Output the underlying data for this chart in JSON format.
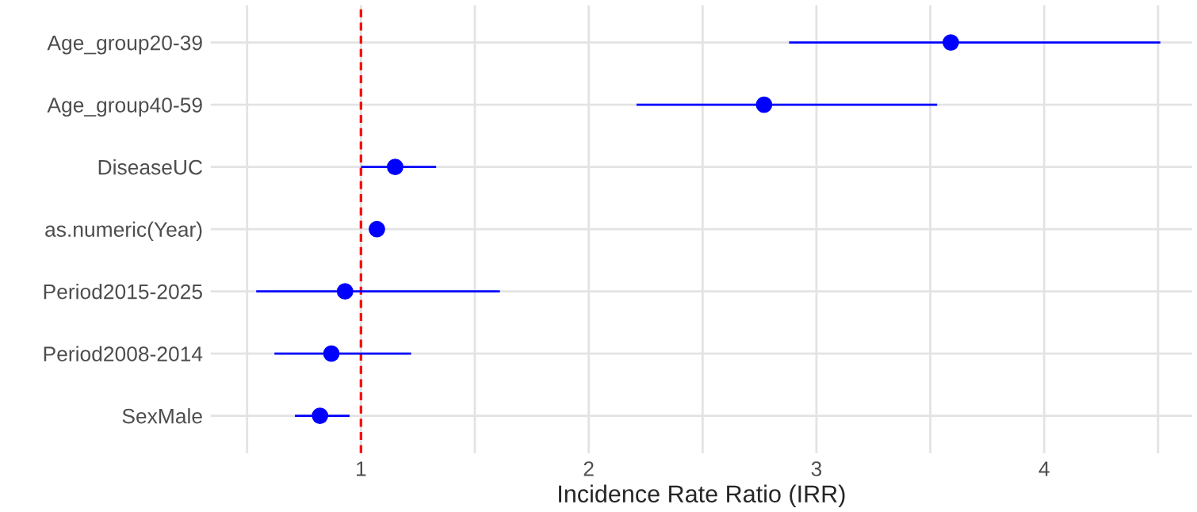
{
  "chart_data": {
    "type": "scatter",
    "orientation": "horizontal",
    "categories": [
      "Age_group20-39",
      "Age_group40-59",
      "DiseaseUC",
      "as.numeric(Year)",
      "Period2015-2025",
      "Period2008-2014",
      "SexMale"
    ],
    "values": [
      3.59,
      2.77,
      1.15,
      1.07,
      0.93,
      0.87,
      0.82
    ],
    "errors": [
      [
        2.88,
        4.51
      ],
      [
        2.21,
        3.53
      ],
      [
        1.0,
        1.33
      ],
      null,
      [
        0.54,
        1.61
      ],
      [
        0.62,
        1.22
      ],
      [
        0.71,
        0.95
      ]
    ],
    "color": "#0000ff",
    "marker": "circle",
    "xlabel": "Incidence Rate Ratio (IRR)",
    "xlim": [
      0.34,
      4.65
    ],
    "xticks": [
      {
        "value": 0.5,
        "label": null
      },
      1,
      {
        "value": 1.5,
        "label": null
      },
      2,
      {
        "value": 2.5,
        "label": null
      },
      3,
      {
        "value": 3.5,
        "label": null
      },
      4,
      {
        "value": 4.5,
        "label": null
      }
    ],
    "ref_lines": [
      {
        "axis": "x",
        "value": 1,
        "color": "#ff0000",
        "line_style": "dashed"
      }
    ],
    "grid": true,
    "legend": false
  }
}
